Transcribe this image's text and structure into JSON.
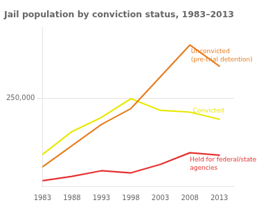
{
  "chart_data": {
    "type": "line",
    "title": "Jail population by conviction status, 1983–2013",
    "x": [
      1983,
      1988,
      1993,
      1998,
      2003,
      2008,
      2013
    ],
    "series": [
      {
        "color": "#e87c1e",
        "values": [
          55000,
          115000,
          175000,
          220000,
          310000,
          400000,
          340000
        ]
      },
      {
        "color": "#e8e800",
        "values": [
          90000,
          155000,
          195000,
          248000,
          215000,
          210000,
          190000
        ]
      },
      {
        "color": "#e83030",
        "values": [
          16000,
          28000,
          44000,
          38000,
          62000,
          95000,
          88000
        ]
      }
    ],
    "xlim": [
      1983,
      2015.5
    ],
    "xticks": [
      1983,
      1988,
      1993,
      1998,
      2003,
      2008,
      2013
    ],
    "ylim": [
      0,
      450000
    ],
    "yticks": [
      {
        "value": 250000,
        "label": "250,000"
      }
    ],
    "grid": "y",
    "annotations": [
      {
        "text": "Unconvicted\n(pre-trial detention)",
        "x": 2008.2,
        "y": 390000,
        "color": "#e87c1e"
      },
      {
        "text": "Convicted",
        "x": 2008.5,
        "y": 222000,
        "color": "#e8e800"
      },
      {
        "text": "Held for federal/state\nagencies",
        "x": 2008.0,
        "y": 84000,
        "color": "#e83030"
      }
    ]
  }
}
